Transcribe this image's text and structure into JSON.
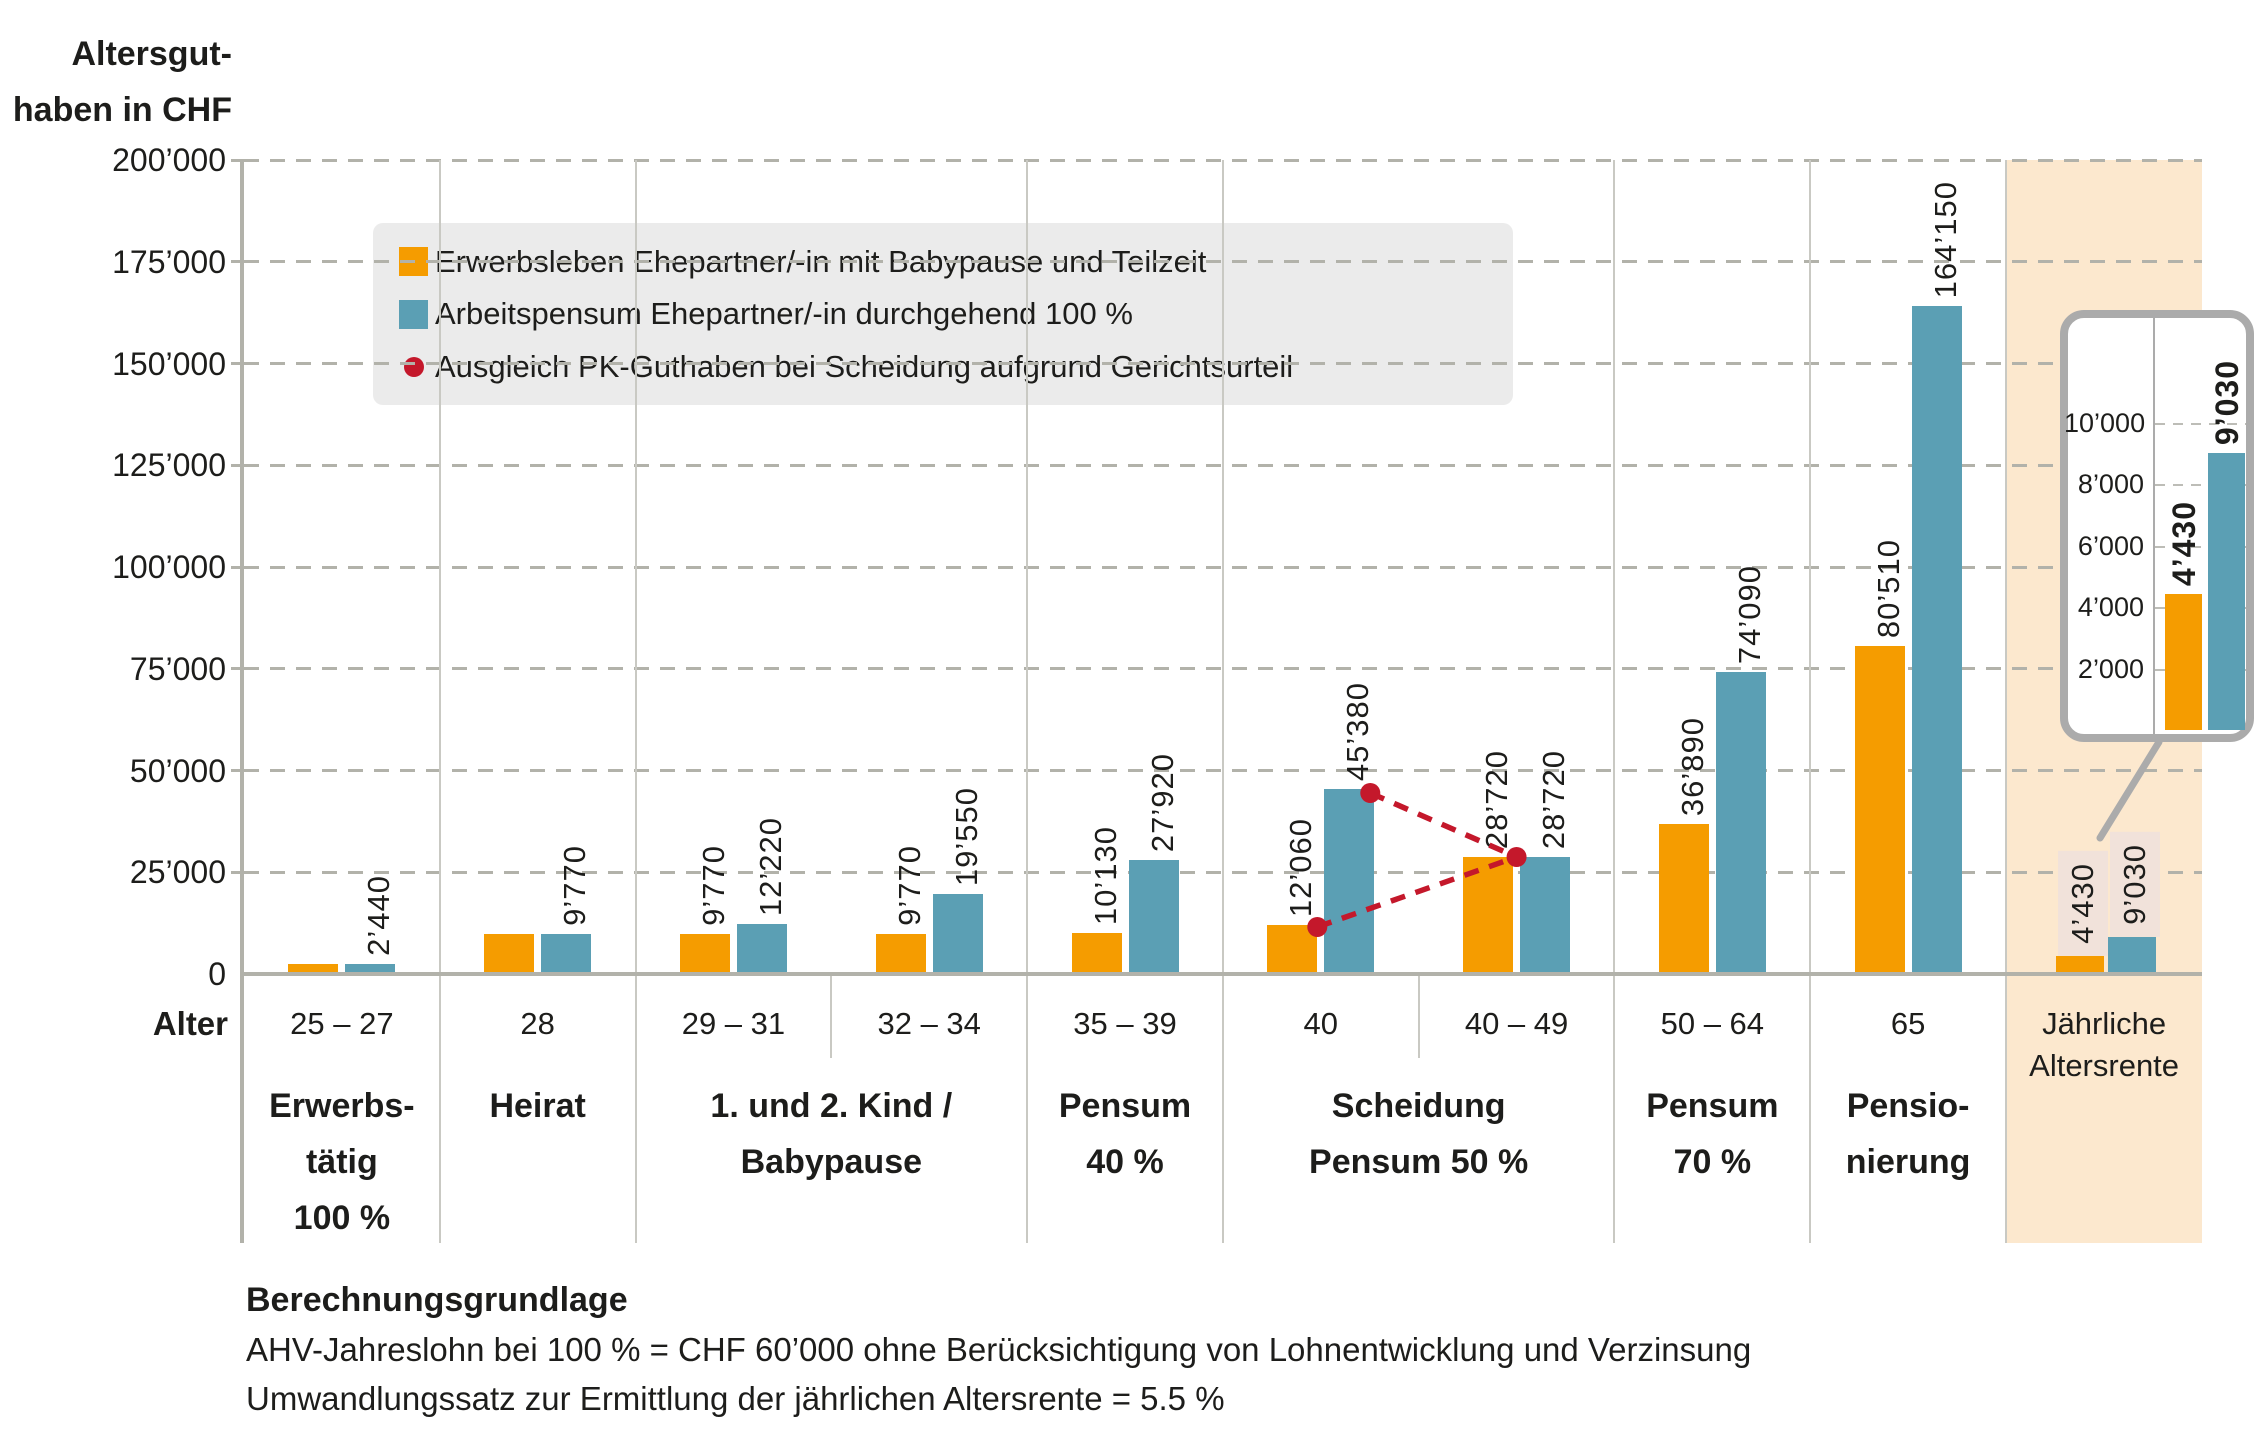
{
  "colors": {
    "orange": "#F59C00",
    "blue": "#5B9FB4",
    "red": "#C4182B",
    "peach": "#FCE8CE",
    "label_strip": "#F1E2DA",
    "legend_bg": "#EBEBEB",
    "grid": "#B2B2AA",
    "separator": "#C9C9C3",
    "inset_border": "#ABABAB",
    "text": "#1D1D1B"
  },
  "axis_title_lines": [
    "Altersgut-",
    "haben in CHF"
  ],
  "x_axis_label": "Alter",
  "legend": [
    {
      "swatch": "orange-square",
      "label": "Erwerbsleben Ehepartner/-in mit Babypause und Teilzeit"
    },
    {
      "swatch": "blue-square",
      "label": "Arbeitspensum Ehepartner/-in durchgehend 100 %"
    },
    {
      "swatch": "red-dot",
      "label": "Ausgleich PK-Guthaben bei Scheidung aufgrund Gerichtsurteil"
    }
  ],
  "chart_data": {
    "type": "bar",
    "ylabel": "Altersguthaben in CHF",
    "ylim": [
      0,
      200000
    ],
    "ytick_step": 25000,
    "yticks": [
      "0",
      "25’000",
      "50’000",
      "75’000",
      "100’000",
      "125’000",
      "150’000",
      "175’000",
      "200’000"
    ],
    "grid": "dashed-horizontal",
    "legend_position": "top-left-inside",
    "series_names": [
      "Erwerbsleben Ehepartner/-in mit Babypause und Teilzeit",
      "Arbeitspensum Ehepartner/-in durchgehend 100 %"
    ],
    "groups": [
      {
        "age": "25 – 27",
        "values": [
          2440,
          2440
        ],
        "bar_labels": [
          "2’440"
        ],
        "single_label": true
      },
      {
        "age": "28",
        "values": [
          9770,
          9770
        ],
        "bar_labels": [
          "9’770"
        ],
        "single_label": true
      },
      {
        "age": "29 – 31",
        "values": [
          9770,
          12220
        ],
        "bar_labels": [
          "9’770",
          "12’220"
        ]
      },
      {
        "age": "32 – 34",
        "values": [
          9770,
          19550
        ],
        "bar_labels": [
          "9’770",
          "19’550"
        ]
      },
      {
        "age": "35 – 39",
        "values": [
          10130,
          27920
        ],
        "bar_labels": [
          "10’130",
          "27’920"
        ]
      },
      {
        "age": "40",
        "values": [
          12060,
          45380
        ],
        "bar_labels": [
          "12’060",
          "45’380"
        ]
      },
      {
        "age": "40 – 49",
        "values": [
          28720,
          28720
        ],
        "bar_labels": [
          "28’720",
          "28’720"
        ]
      },
      {
        "age": "50 – 64",
        "values": [
          36890,
          74090
        ],
        "bar_labels": [
          "36’890",
          "74’090"
        ]
      },
      {
        "age": "65",
        "values": [
          80510,
          164150
        ],
        "bar_labels": [
          "80’510",
          "164’150"
        ]
      }
    ],
    "stages": [
      {
        "lines": [
          "Erwerbs-",
          "tätig",
          "100 %"
        ],
        "span": [
          0,
          0
        ]
      },
      {
        "lines": [
          "Heirat"
        ],
        "span": [
          1,
          1
        ]
      },
      {
        "lines": [
          "1. und 2. Kind /",
          "Babypause"
        ],
        "span": [
          2,
          3
        ]
      },
      {
        "lines": [
          "Pensum",
          "40 %"
        ],
        "span": [
          4,
          4
        ]
      },
      {
        "lines": [
          "Scheidung",
          "Pensum 50 %"
        ],
        "span": [
          5,
          6
        ]
      },
      {
        "lines": [
          "Pensum",
          "70 %"
        ],
        "span": [
          7,
          7
        ]
      },
      {
        "lines": [
          "Pensio-",
          "nierung"
        ],
        "span": [
          8,
          8
        ]
      }
    ],
    "divorce_markers": {
      "points": [
        {
          "group": 5,
          "bar": 0,
          "value": 12060
        },
        {
          "group": 5,
          "bar": 1,
          "value": 45380
        },
        {
          "group": 6,
          "bar": "between",
          "value": 28720
        }
      ],
      "lines": [
        [
          1,
          2
        ],
        [
          0,
          2
        ]
      ]
    },
    "annuity_column": {
      "header_lines": [
        "Jährliche",
        "Altersrente"
      ],
      "values": [
        4430,
        9030
      ],
      "labels": [
        "4’430",
        "9’030"
      ]
    },
    "inset": {
      "yticks": [
        "10’000",
        "8’000",
        "6’000",
        "4’000",
        "2’000"
      ],
      "ymax_shown": 10000,
      "values": [
        4430,
        9030
      ],
      "labels": [
        "4’430",
        "9’030"
      ]
    }
  },
  "footnote": {
    "title": "Berechnungsgrundlage",
    "lines": [
      "AHV-Jahreslohn bei 100 % = CHF 60’000 ohne Berücksichtigung von Lohnentwicklung und Verzinsung",
      "Umwandlungssatz zur Ermittlung der jährlichen Altersrente = 5.5 %"
    ]
  }
}
